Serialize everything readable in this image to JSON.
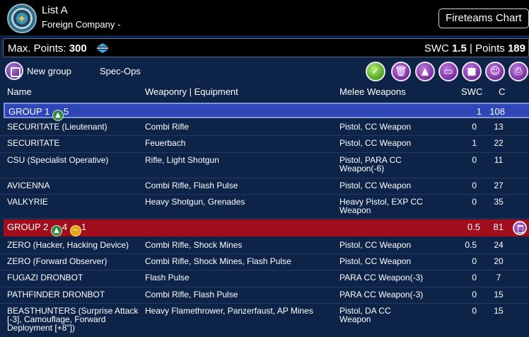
{
  "header": {
    "list_title": "List A",
    "company": "Foreign Company -",
    "chart_button": "Fireteams Chart"
  },
  "points": {
    "max_label": "Max. Points:",
    "max_value": "300",
    "swc_label": "SWC",
    "swc_value": "1.5",
    "sep": "|",
    "points_label": "Points",
    "points_value": "189"
  },
  "toolbar": {
    "new_group": "New group",
    "spec_ops": "Spec-Ops",
    "buttons": [
      "check-icon",
      "trash-icon",
      "warning-icon",
      "chat-icon",
      "save-icon",
      "face-icon",
      "print-icon"
    ]
  },
  "columns": {
    "name": "Name",
    "weapons": "Weaponry | Equipment",
    "melee": "Melee Weapons",
    "swc": "SWC",
    "c": "C"
  },
  "groups": [
    {
      "name": "GROUP 1",
      "orders": "5",
      "swc": "1",
      "c": "108",
      "units": [
        {
          "name": "SECURITATE (Lieutenant)",
          "weapons": "Combi Rifle",
          "melee": "Pistol, CC Weapon",
          "swc": "0",
          "c": "13"
        },
        {
          "name": "SECURITATE",
          "weapons": "Feuerbach",
          "melee": "Pistol, CC Weapon",
          "swc": "1",
          "c": "22"
        },
        {
          "name": "CSU (Specialist Operative)",
          "weapons": "Rifle, Light Shotgun",
          "melee": "Pistol, PARA CC Weapon(-6)",
          "swc": "0",
          "c": "11"
        },
        {
          "name": "AVICENNA",
          "weapons": "Combi Rifle, Flash Pulse",
          "melee": "Pistol, CC Weapon",
          "swc": "0",
          "c": "27"
        },
        {
          "name": "VALKYRIE",
          "weapons": "Heavy Shotgun, Grenades",
          "melee": "Heavy Pistol, EXP CC Weapon",
          "swc": "0",
          "c": "35"
        }
      ]
    },
    {
      "name": "GROUP 2",
      "orders": "4",
      "irregular": "1",
      "swc": "0.5",
      "c": "81",
      "units": [
        {
          "name": "ZERO (Hacker, Hacking Device)",
          "weapons": "Combi Rifle, Shock Mines",
          "melee": "Pistol, CC Weapon",
          "swc": "0.5",
          "c": "24"
        },
        {
          "name": "ZERO (Forward Observer)",
          "weapons": "Combi Rifle, Shock Mines, Flash Pulse",
          "melee": "Pistol, CC Weapon",
          "swc": "0",
          "c": "20"
        },
        {
          "name": "FUGAZI DRONBOT",
          "weapons": "Flash Pulse",
          "melee": "PARA CC Weapon(-3)",
          "swc": "0",
          "c": "7"
        },
        {
          "name": "PATHFINDER DRONBOT",
          "weapons": "Combi Rifle, Flash Pulse",
          "melee": "PARA CC Weapon(-3)",
          "swc": "0",
          "c": "15"
        },
        {
          "name": "BEASTHUNTERS (Surprise Attack [-3], Camouflage, Forward Deployment [+8\"])",
          "weapons": "Heavy Flamethrower, Panzerfaust, AP Mines",
          "melee": "Pistol, DA CC Weapon",
          "swc": "0",
          "c": "15"
        }
      ]
    }
  ]
}
